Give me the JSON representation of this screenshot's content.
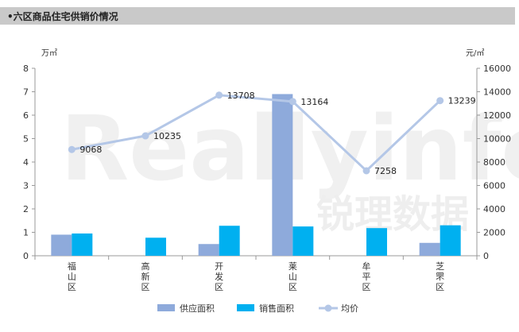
{
  "header": {
    "title": "•六区商品住宅供销价情况"
  },
  "watermark": {
    "latin": "Reallyinfo",
    "cjk": "锐理数据"
  },
  "chart_data": {
    "type": "bar",
    "categories": [
      "福山区",
      "高新区",
      "开发区",
      "莱山区",
      "牟平区",
      "芝罘区"
    ],
    "left_unit": "万㎡",
    "right_unit": "元/㎡",
    "ylim_left": [
      0,
      8
    ],
    "ylim_right": [
      0,
      16000
    ],
    "left_ticks": [
      "0",
      "1",
      "2",
      "3",
      "4",
      "5",
      "6",
      "7",
      "8"
    ],
    "right_ticks": [
      "0",
      "2000",
      "4000",
      "6000",
      "8000",
      "10000",
      "12000",
      "14000",
      "16000"
    ],
    "series": [
      {
        "name": "供应面积",
        "type": "bar",
        "axis": "left",
        "color": "#8eaadb",
        "values": [
          0.9,
          0,
          0.5,
          6.9,
          0,
          0.55
        ]
      },
      {
        "name": "销售面积",
        "type": "bar",
        "axis": "left",
        "color": "#00b0f0",
        "values": [
          0.95,
          0.77,
          1.28,
          1.25,
          1.18,
          1.3
        ]
      },
      {
        "name": "均价",
        "type": "line",
        "axis": "right",
        "color": "#b4c7e7",
        "values": [
          9068,
          10235,
          13708,
          13164,
          7258,
          13239
        ],
        "labels": [
          "9068",
          "10235",
          "13708",
          "13164",
          "7258",
          "13239"
        ]
      }
    ],
    "grid": false,
    "legend_position": "bottom"
  }
}
